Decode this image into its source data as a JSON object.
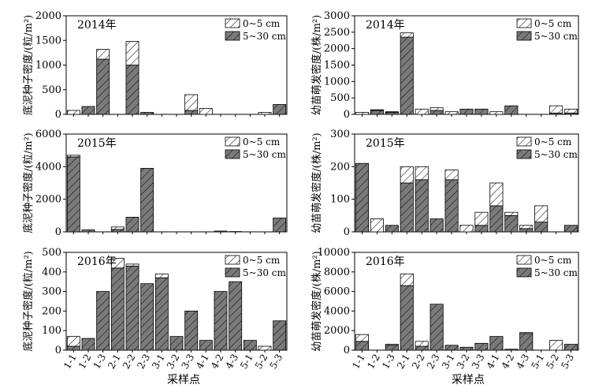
{
  "figure": {
    "x_axis_label": "采样点",
    "y_label_seed": "底泥种子密度/(粒/m²)",
    "y_label_seedling": "幼苗萌发密度/(株/m²)",
    "legend_top": "0~5 cm",
    "legend_bottom": "5~30 cm",
    "colors": {
      "layer_5_30": "#7a7a7a",
      "layer_0_5": "#ffffff",
      "hatch": "#000000"
    }
  },
  "chart_data": [
    {
      "type": "bar",
      "stacked": true,
      "title": "2014年",
      "ylabel": "底泥种子密度/(粒/m²)",
      "ylim": [
        0,
        2000
      ],
      "yticks": [
        0,
        500,
        1000,
        1500,
        2000
      ],
      "categories": [
        "1-1",
        "1-2",
        "1-3",
        "2-1",
        "2-2",
        "2-3",
        "3-1",
        "3-2",
        "3-3",
        "4-1",
        "4-2",
        "4-3",
        "5-1",
        "5-2",
        "5-3"
      ],
      "series": [
        {
          "name": "5~30 cm",
          "values": [
            0,
            160,
            1120,
            0,
            1000,
            40,
            0,
            0,
            80,
            0,
            0,
            0,
            0,
            0,
            200
          ]
        },
        {
          "name": "0~5 cm",
          "values": [
            80,
            0,
            200,
            0,
            480,
            0,
            0,
            0,
            320,
            120,
            0,
            0,
            0,
            40,
            0
          ]
        }
      ],
      "legend": "top-right",
      "grid": false
    },
    {
      "type": "bar",
      "stacked": true,
      "title": "2014年",
      "ylabel": "幼苗萌发密度/(株/m²)",
      "ylim": [
        0,
        3000
      ],
      "yticks": [
        0,
        500,
        1000,
        1500,
        2000,
        2500,
        3000
      ],
      "categories": [
        "1-1",
        "1-2",
        "1-3",
        "2-1",
        "2-2",
        "2-3",
        "3-1",
        "3-2",
        "3-3",
        "4-1",
        "4-2",
        "4-3",
        "5-1",
        "5-2",
        "5-3"
      ],
      "series": [
        {
          "name": "5~30 cm",
          "values": [
            0,
            120,
            60,
            2350,
            0,
            120,
            0,
            160,
            160,
            0,
            260,
            0,
            0,
            40,
            40
          ]
        },
        {
          "name": "0~5 cm",
          "values": [
            60,
            20,
            20,
            130,
            160,
            80,
            80,
            0,
            0,
            80,
            0,
            0,
            0,
            220,
            120
          ]
        }
      ],
      "legend": "top-right",
      "grid": false
    },
    {
      "type": "bar",
      "stacked": true,
      "title": "2015年",
      "ylabel": "底泥种子密度/(粒/m²)",
      "ylim": [
        0,
        6000
      ],
      "yticks": [
        0,
        2000,
        4000,
        6000
      ],
      "categories": [
        "1-1",
        "1-2",
        "1-3",
        "2-1",
        "2-2",
        "2-3",
        "3-1",
        "3-2",
        "3-3",
        "4-1",
        "4-2",
        "4-3",
        "5-1",
        "5-2",
        "5-3"
      ],
      "series": [
        {
          "name": "5~30 cm",
          "values": [
            4600,
            120,
            0,
            150,
            900,
            3900,
            0,
            0,
            0,
            0,
            50,
            0,
            0,
            0,
            850
          ]
        },
        {
          "name": "0~5 cm",
          "values": [
            100,
            0,
            0,
            150,
            0,
            0,
            0,
            0,
            0,
            0,
            0,
            20,
            0,
            0,
            0
          ]
        }
      ],
      "legend": "top-right",
      "grid": false
    },
    {
      "type": "bar",
      "stacked": true,
      "title": "2015年",
      "ylabel": "幼苗萌发密度/(株/m²)",
      "ylim": [
        0,
        300
      ],
      "yticks": [
        0,
        100,
        200,
        300
      ],
      "categories": [
        "1-1",
        "1-2",
        "1-3",
        "2-1",
        "2-2",
        "2-3",
        "3-1",
        "3-2",
        "3-3",
        "4-1",
        "4-2",
        "4-3",
        "5-1",
        "5-2",
        "5-3"
      ],
      "series": [
        {
          "name": "5~30 cm",
          "values": [
            210,
            0,
            20,
            150,
            160,
            40,
            160,
            0,
            20,
            80,
            50,
            10,
            30,
            0,
            20
          ]
        },
        {
          "name": "0~5 cm",
          "values": [
            0,
            40,
            0,
            50,
            40,
            0,
            30,
            20,
            40,
            70,
            10,
            10,
            50,
            0,
            0
          ]
        }
      ],
      "legend": "top-right",
      "grid": false
    },
    {
      "type": "bar",
      "stacked": true,
      "title": "2016年",
      "ylabel": "底泥种子密度/(粒/m²)",
      "ylim": [
        0,
        500
      ],
      "yticks": [
        0,
        100,
        200,
        300,
        400,
        500
      ],
      "categories": [
        "1-1",
        "1-2",
        "1-3",
        "2-1",
        "2-2",
        "2-3",
        "3-1",
        "3-2",
        "3-3",
        "4-1",
        "4-2",
        "4-3",
        "5-1",
        "5-2",
        "5-3"
      ],
      "series": [
        {
          "name": "5~30 cm",
          "values": [
            20,
            60,
            300,
            420,
            430,
            340,
            370,
            70,
            200,
            50,
            300,
            350,
            50,
            0,
            150
          ]
        },
        {
          "name": "0~5 cm",
          "values": [
            50,
            0,
            0,
            50,
            10,
            0,
            20,
            0,
            0,
            0,
            0,
            0,
            0,
            20,
            0
          ]
        }
      ],
      "legend": "top-right",
      "grid": false
    },
    {
      "type": "bar",
      "stacked": true,
      "title": "2016年",
      "ylabel": "幼苗萌发密度/(株/m²)",
      "ylim": [
        0,
        10000
      ],
      "yticks": [
        0,
        2000,
        4000,
        6000,
        8000,
        10000
      ],
      "categories": [
        "1-1",
        "1-2",
        "1-3",
        "2-1",
        "2-2",
        "2-3",
        "3-1",
        "3-2",
        "3-3",
        "4-1",
        "4-2",
        "4-3",
        "5-1",
        "5-2",
        "5-3"
      ],
      "series": [
        {
          "name": "5~30 cm",
          "values": [
            900,
            0,
            500,
            6600,
            400,
            4700,
            500,
            300,
            700,
            1400,
            100,
            1700,
            0,
            0,
            600
          ]
        },
        {
          "name": "0~5 cm",
          "values": [
            700,
            0,
            100,
            1200,
            500,
            0,
            0,
            0,
            0,
            0,
            0,
            100,
            0,
            1000,
            0
          ]
        }
      ],
      "legend": "top-right",
      "grid": false
    }
  ]
}
